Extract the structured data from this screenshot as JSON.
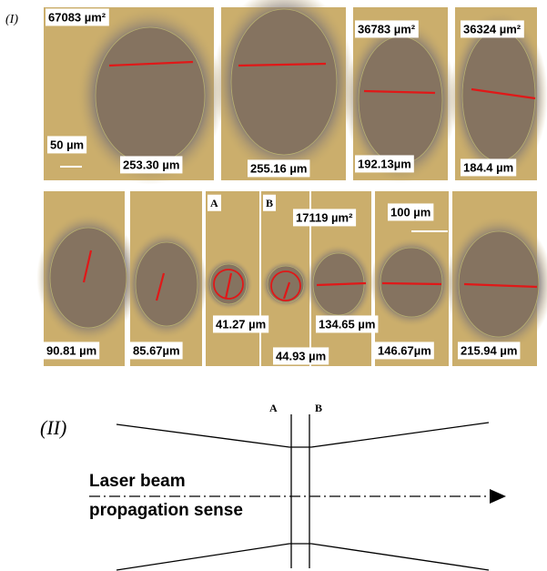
{
  "panel_I": {
    "label": "(I)",
    "top_row_labels": [
      "67083 µm²",
      "50 µm",
      "253.30 µm",
      "255.16 µm",
      "36783 µm²",
      "192.13µm",
      "36324 µm²",
      "184.4 µm"
    ],
    "bottom_row_labels": [
      "A",
      "B",
      "17119 µm²",
      "100 µm",
      "90.81 µm",
      "85.67µm",
      "41.27 µm",
      "44.93 µm",
      "134.65 µm",
      "146.67µm",
      "215.94 µm"
    ]
  },
  "panel_II": {
    "label": "(II)",
    "plane_labels": [
      "A",
      "B"
    ],
    "beam_label": [
      "Laser beam",
      "propagation sense"
    ]
  }
}
